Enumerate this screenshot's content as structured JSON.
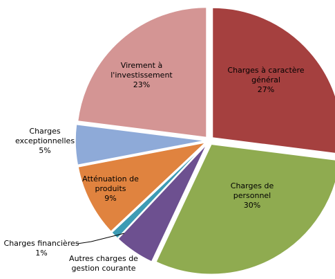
{
  "chart_data": {
    "type": "pie",
    "categories": [
      "Charges à caractère général",
      "Charges de personnel",
      "Autres charges de gestion courante",
      "Charges financières",
      "Atténuation de produits",
      "Charges exceptionnelles",
      "Virement à l'investissement"
    ],
    "values": [
      27,
      30,
      5,
      1,
      9,
      5,
      23
    ],
    "value_labels": [
      "27%",
      "30%",
      null,
      "1%",
      "9%",
      "5%",
      "23%"
    ],
    "colors": [
      "#a5403f",
      "#8fab50",
      "#6d5090",
      "#3d9bb4",
      "#e0833f",
      "#8eaad8",
      "#d49594"
    ]
  }
}
